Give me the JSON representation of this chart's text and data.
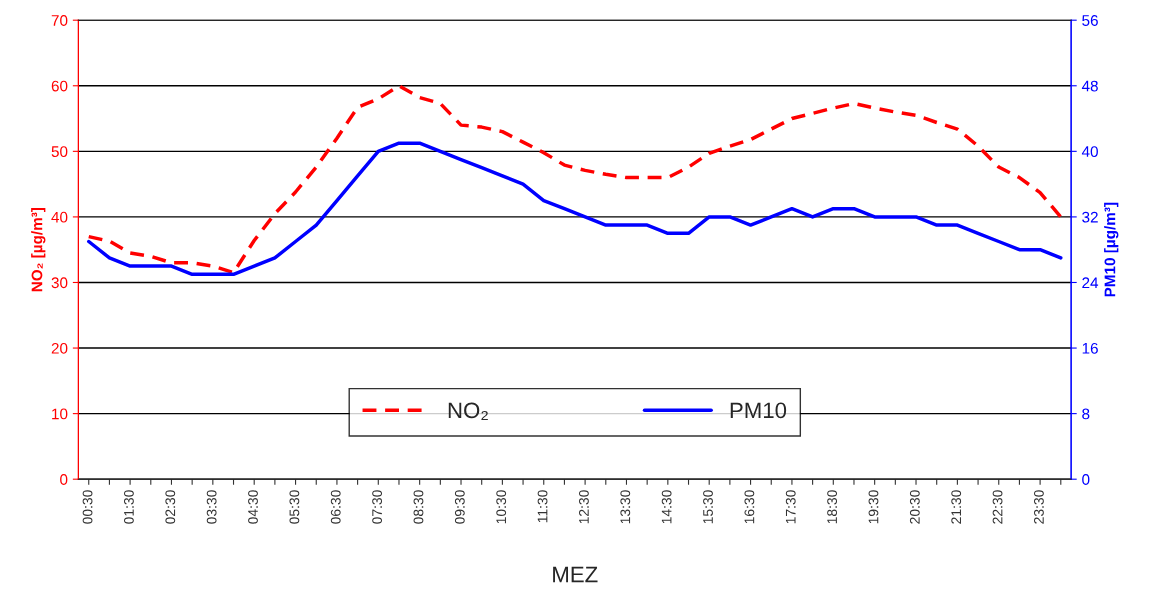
{
  "chart_data": {
    "type": "line",
    "xlabel": "MEZ",
    "ylabel": "NO₂ [µg/m³]",
    "y2label": "PM10 [µg/m³]",
    "categories": [
      "00:30",
      null,
      "01:30",
      null,
      "02:30",
      null,
      "03:30",
      null,
      "04:30",
      null,
      "05:30",
      null,
      "06:30",
      null,
      "07:30",
      null,
      "08:30",
      null,
      "09:30",
      null,
      "10:30",
      null,
      "11:30",
      null,
      "12:30",
      null,
      "13:30",
      null,
      "14:30",
      null,
      "15:30",
      null,
      "16:30",
      null,
      "17:30",
      null,
      "18:30",
      null,
      "19:30",
      null,
      "20:30",
      null,
      "21:30",
      null,
      "22:30",
      null,
      "23:30",
      null
    ],
    "series": [
      {
        "name": "NO₂",
        "color": "#ff0000",
        "line_style": "dashed",
        "values": [
          37,
          36.3,
          34.5,
          34,
          33,
          33,
          32.5,
          31.5,
          36.4,
          40.5,
          43.8,
          47.6,
          52,
          56.7,
          58,
          60,
          58.2,
          57.3,
          54,
          53.7,
          53,
          51.4,
          49.8,
          47.9,
          47.1,
          46.5,
          46,
          46,
          46,
          47.6,
          49.7,
          50.8,
          51.8,
          53.4,
          55,
          55.8,
          56.6,
          57.3,
          56.6,
          56,
          55.5,
          54.4,
          53.4,
          50.8,
          47.6,
          46,
          43.7,
          40
        ]
      },
      {
        "name": "PM10",
        "color": "#0000ff",
        "line_style": "solid",
        "axis": "y2",
        "values": [
          29,
          27,
          26,
          26,
          26,
          25,
          25,
          25,
          26,
          27,
          29,
          31,
          34,
          37,
          40,
          41,
          41,
          40,
          39,
          38,
          37,
          36,
          34,
          33,
          32,
          31,
          31,
          31,
          30,
          30,
          32,
          32,
          31,
          32,
          33,
          32,
          33,
          33,
          32,
          32,
          32,
          31,
          31,
          30,
          29,
          28,
          28,
          27
        ]
      }
    ],
    "ylim": [
      0,
      70
    ],
    "yticks": [
      0,
      10,
      20,
      30,
      40,
      50,
      60,
      70
    ],
    "y2lim": [
      0,
      56
    ],
    "y2ticks": [
      0,
      8,
      16,
      24,
      32,
      40,
      48,
      56
    ],
    "grid": "y",
    "legend": "bottom",
    "marker": "none"
  }
}
